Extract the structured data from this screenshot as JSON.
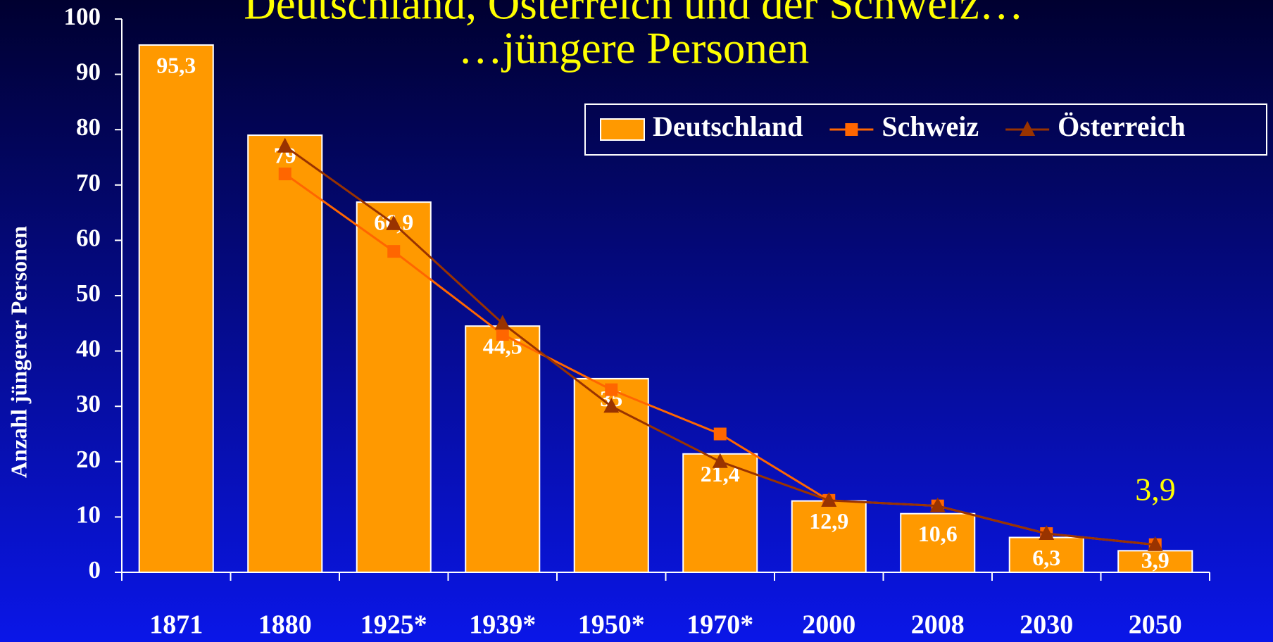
{
  "chart_data": {
    "type": "bar",
    "title": "Deutschland, Österreich und der Schweiz…",
    "subtitle": "…jüngere Personen",
    "y_label": "Anzahl jüngerer Personen",
    "annotation": "3,9",
    "categories": [
      "1871",
      "1880",
      "1925*",
      "1939*",
      "1950*",
      "1970*",
      "2000",
      "2008",
      "2030",
      "2050"
    ],
    "series": [
      {
        "name": "Deutschland",
        "type": "bar",
        "color": "#ff9900",
        "values": [
          95.3,
          79,
          66.9,
          44.5,
          35,
          21.4,
          12.9,
          10.6,
          6.3,
          3.9
        ],
        "value_labels": [
          "95,3",
          "79",
          "66,9",
          "44,5",
          "35",
          "21,4",
          "12,9",
          "10,6",
          "6,3",
          "3,9"
        ]
      },
      {
        "name": "Schweiz",
        "type": "line",
        "marker": "square",
        "color": "#ff6600",
        "values": [
          null,
          72,
          58,
          43,
          33,
          25,
          13,
          12,
          7,
          5
        ]
      },
      {
        "name": "Österreich",
        "type": "line",
        "marker": "triangle",
        "color": "#993300",
        "values": [
          null,
          77,
          63,
          45,
          30,
          20,
          13,
          12,
          7,
          5
        ]
      }
    ],
    "ylim": [
      0,
      100
    ],
    "yticks": [
      0,
      10,
      20,
      30,
      40,
      50,
      60,
      70,
      80,
      90,
      100
    ],
    "legend": "top-right"
  }
}
